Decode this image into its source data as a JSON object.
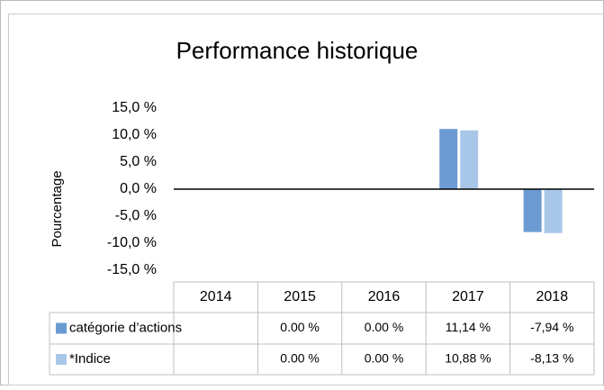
{
  "chart_data": {
    "type": "bar",
    "title": "Performance historique",
    "y_label": "Pourcentage",
    "categories": [
      "2014",
      "2015",
      "2016",
      "2017",
      "2018"
    ],
    "series": [
      {
        "name": "catégorie d’actions",
        "color": "#6b9bd2",
        "values": [
          null,
          0.0,
          0.0,
          11.14,
          -7.94
        ],
        "value_labels": [
          null,
          "0.00 %",
          "0.00 %",
          "11,14 %",
          "-7,94 %"
        ]
      },
      {
        "name": "*Indice",
        "color": "#a8c7e8",
        "values": [
          null,
          0.0,
          0.0,
          10.88,
          -8.13
        ],
        "value_labels": [
          null,
          "0.00 %",
          "0.00 %",
          "10,88 %",
          "-8,13 %"
        ]
      }
    ],
    "ylim": [
      -15,
      15
    ],
    "yticks": [
      {
        "value": 15,
        "label": "15,0 %"
      },
      {
        "value": 10,
        "label": "10,0 %"
      },
      {
        "value": 5,
        "label": "5,0 %"
      },
      {
        "value": 0,
        "label": "0,0 %"
      },
      {
        "value": -5,
        "label": "-5,0 %"
      },
      {
        "value": -10,
        "label": "-10,0 %"
      },
      {
        "value": -15,
        "label": "-15,0 %"
      }
    ],
    "negative_tick_color": "#e00000",
    "data_table": true
  }
}
